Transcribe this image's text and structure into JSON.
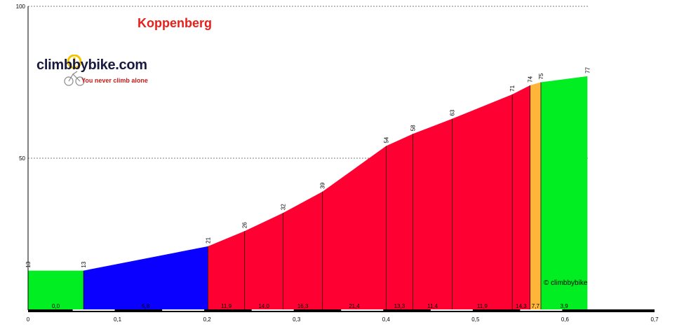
{
  "chart_data": {
    "type": "area",
    "title": "Koppenberg",
    "xlabel": "",
    "ylabel": "",
    "xlim": [
      0,
      0.7
    ],
    "ylim": [
      0,
      100
    ],
    "x_ticks": [
      "0",
      "0,1",
      "0,2",
      "0,3",
      "0,4",
      "0,5",
      "0,6",
      "0,7"
    ],
    "y_ticks": [
      "100",
      "50"
    ],
    "grid": "dashed horizontal at 50 and 100",
    "points": [
      {
        "x": 0.0,
        "y": 13,
        "label": "13"
      },
      {
        "x": 0.062,
        "y": 13,
        "label": "13"
      },
      {
        "x": 0.201,
        "y": 21,
        "label": "21"
      },
      {
        "x": 0.242,
        "y": 26,
        "label": "26"
      },
      {
        "x": 0.285,
        "y": 32,
        "label": "32"
      },
      {
        "x": 0.329,
        "y": 39,
        "label": "39"
      },
      {
        "x": 0.4,
        "y": 54,
        "label": "54"
      },
      {
        "x": 0.43,
        "y": 58,
        "label": "58"
      },
      {
        "x": 0.474,
        "y": 63,
        "label": "63"
      },
      {
        "x": 0.541,
        "y": 71,
        "label": "71"
      },
      {
        "x": 0.561,
        "y": 74,
        "label": "74"
      },
      {
        "x": 0.573,
        "y": 75,
        "label": "75"
      },
      {
        "x": 0.625,
        "y": 77,
        "label": "77"
      }
    ],
    "segments": [
      {
        "gradient": "0,0",
        "color": "#00ee22"
      },
      {
        "gradient": "5,8",
        "color": "#0a00ff"
      },
      {
        "gradient": "11,9",
        "color": "#ff0033"
      },
      {
        "gradient": "14,0",
        "color": "#ff0033"
      },
      {
        "gradient": "16,3",
        "color": "#ff0033"
      },
      {
        "gradient": "21,4",
        "color": "#ff0033"
      },
      {
        "gradient": "13,3",
        "color": "#ff0033"
      },
      {
        "gradient": "11,4",
        "color": "#ff0033"
      },
      {
        "gradient": "11,9",
        "color": "#ff0033"
      },
      {
        "gradient": "14,3",
        "color": "#ff0033"
      },
      {
        "gradient": "7,7",
        "color": "#ffb43a"
      },
      {
        "gradient": "3,9",
        "color": "#00ee22"
      }
    ]
  },
  "logo": {
    "name": "climbbybike.com",
    "tagline": "You never climb alone"
  },
  "watermark": "© climbbybike"
}
